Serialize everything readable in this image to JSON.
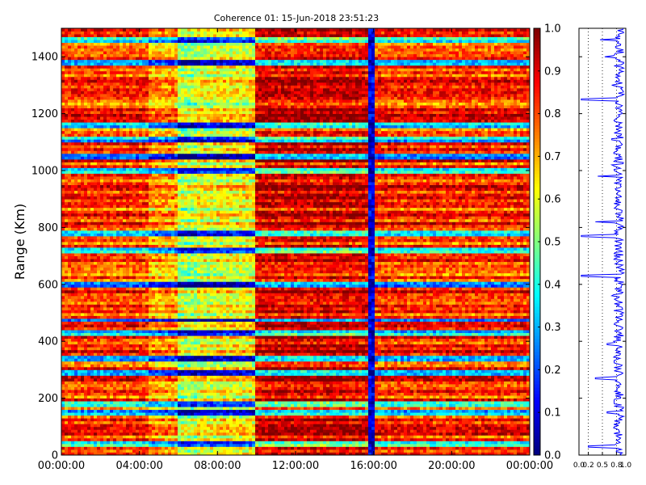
{
  "chart_data": [
    {
      "type": "heatmap",
      "title": "Coherence 01: 15-Jun-2018 23:51:23",
      "xlabel": "",
      "ylabel": "Range (Km)",
      "x_ticks": [
        "00:00:00",
        "04:00:00",
        "08:00:00",
        "12:00:00",
        "16:00:00",
        "20:00:00",
        "00:00:00"
      ],
      "x_range_hours": [
        0,
        24
      ],
      "y_ticks": [
        "0",
        "200",
        "400",
        "600",
        "800",
        "1000",
        "1200",
        "1400"
      ],
      "ylim": [
        0,
        1500
      ],
      "colormap": "jet",
      "colorbar": {
        "range": [
          0,
          1
        ],
        "ticks": [
          "0.0",
          "0.1",
          "0.2",
          "0.3",
          "0.4",
          "0.5",
          "0.6",
          "0.7",
          "0.8",
          "0.9",
          "1.0"
        ]
      },
      "time_segments_hours": [
        {
          "start": 0,
          "end": 4.5,
          "mean_coherence": 0.82
        },
        {
          "start": 4.5,
          "end": 6.0,
          "mean_coherence": 0.72
        },
        {
          "start": 6.0,
          "end": 7.0,
          "mean_coherence": 0.55
        },
        {
          "start": 7.0,
          "end": 8.0,
          "mean_coherence": 0.6
        },
        {
          "start": 8.0,
          "end": 10.0,
          "mean_coherence": 0.62
        },
        {
          "start": 10.0,
          "end": 15.8,
          "mean_coherence": 0.9
        },
        {
          "start": 15.8,
          "end": 16.0,
          "mean_coherence": 0.1
        },
        {
          "start": 16.0,
          "end": 24.0,
          "mean_coherence": 0.83
        }
      ],
      "low_coherence_ranges_km": [
        40,
        150,
        180,
        290,
        340,
        430,
        475,
        600,
        720,
        780,
        1000,
        1050,
        1110,
        1160,
        1380,
        1460
      ]
    },
    {
      "type": "line",
      "title": "",
      "xlabel": "",
      "ylabel": "",
      "xlim": [
        0.0,
        1.0
      ],
      "x_ticks": [
        "0.0",
        "0.2",
        "0.5",
        "0.8",
        "1.0"
      ],
      "ylim": [
        0,
        1500
      ],
      "y_ticks": [
        "0",
        "200",
        "400",
        "600",
        "800",
        "1000",
        "1200",
        "1400"
      ],
      "gridlines_x": [
        0.2,
        0.5,
        0.8
      ],
      "series": [
        {
          "color": "#0000ff",
          "typical_value": 0.85,
          "dips": [
            {
              "y": 30,
              "x": 0.2
            },
            {
              "y": 150,
              "x": 0.6
            },
            {
              "y": 190,
              "x": 0.75
            },
            {
              "y": 270,
              "x": 0.35
            },
            {
              "y": 330,
              "x": 0.75
            },
            {
              "y": 390,
              "x": 0.6
            },
            {
              "y": 460,
              "x": 0.75
            },
            {
              "y": 560,
              "x": 0.7
            },
            {
              "y": 630,
              "x": 0.05
            },
            {
              "y": 700,
              "x": 0.75
            },
            {
              "y": 770,
              "x": 0.05
            },
            {
              "y": 820,
              "x": 0.35
            },
            {
              "y": 980,
              "x": 0.4
            },
            {
              "y": 1020,
              "x": 0.7
            },
            {
              "y": 1110,
              "x": 0.7
            },
            {
              "y": 1250,
              "x": 0.05
            },
            {
              "y": 1300,
              "x": 0.7
            },
            {
              "y": 1400,
              "x": 0.55
            },
            {
              "y": 1460,
              "x": 0.45
            }
          ]
        }
      ]
    }
  ]
}
